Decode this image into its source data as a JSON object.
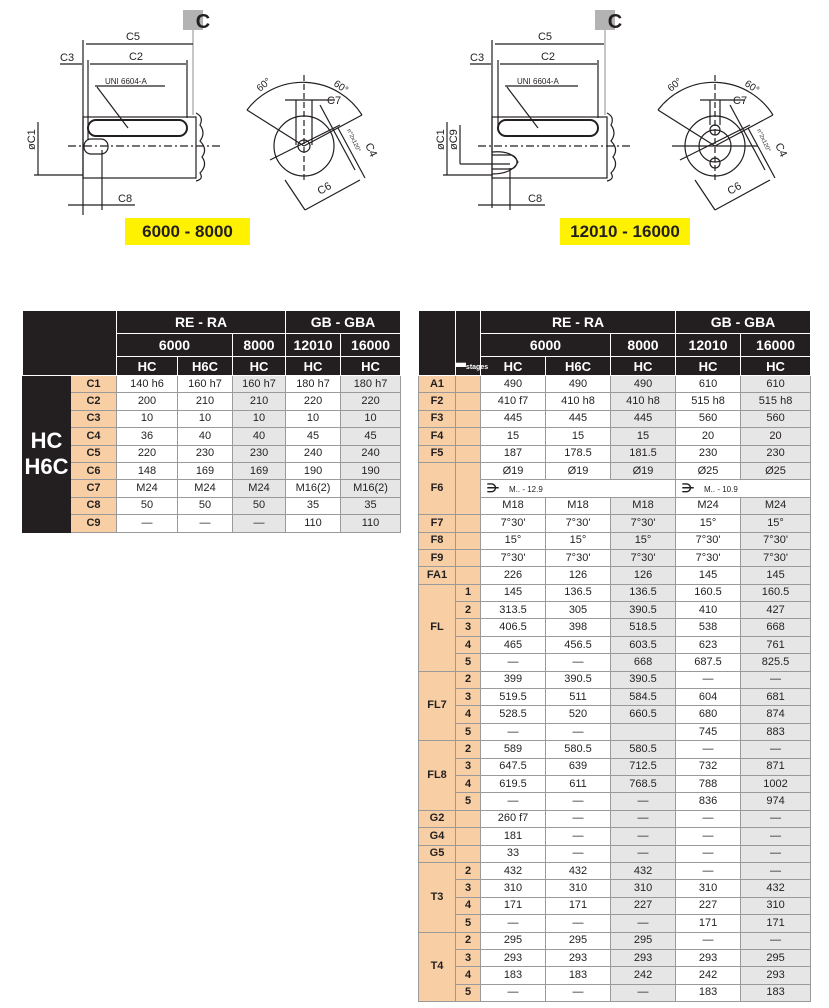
{
  "drawings": [
    {
      "section_marker": "C",
      "labels": {
        "c5": "C5",
        "c2": "C2",
        "c3": "C3",
        "c1": "øC1",
        "c9": "",
        "c8": "C8",
        "key": "UNI 6604-A",
        "a1": "60°",
        "a2": "60°",
        "c7": "C7",
        "c4": "C4",
        "c6": "C6",
        "holes": "n°2x120°"
      },
      "model_range": "6000 - 8000"
    },
    {
      "section_marker": "C",
      "labels": {
        "c5": "C5",
        "c2": "C2",
        "c3": "C3",
        "c1": "øC1",
        "c9": "øC9",
        "c8": "C8",
        "key": "UNI 6604-A",
        "a1": "60°",
        "a2": "60°",
        "c7": "C7",
        "c4": "C4",
        "c6": "C6",
        "holes": "n°2x120°"
      },
      "model_range": "12010 - 16000"
    }
  ],
  "colors": {
    "header": "#231f20",
    "code_cell": "#f8cfa4",
    "shaded_column": "#e6e6e6",
    "model_label": "#fff200"
  },
  "header": {
    "families": [
      {
        "label": "RE - RA"
      },
      {
        "label": "GB - GBA"
      }
    ],
    "sizes": [
      {
        "label": "6000"
      },
      {
        "label": "8000"
      },
      {
        "label": "12010"
      },
      {
        "label": "16000"
      }
    ],
    "variants": [
      "HC",
      "H6C",
      "HC",
      "HC",
      "HC"
    ],
    "stages_label": "stages"
  },
  "left_table": {
    "group_label": [
      "HC",
      "H6C"
    ],
    "rows": [
      {
        "code": "C1",
        "values": [
          "140 h6",
          "160 h7",
          "160 h7",
          "180 h7",
          "180 h7"
        ]
      },
      {
        "code": "C2",
        "values": [
          "200",
          "210",
          "210",
          "220",
          "220"
        ]
      },
      {
        "code": "C3",
        "values": [
          "10",
          "10",
          "10",
          "10",
          "10"
        ]
      },
      {
        "code": "C4",
        "values": [
          "36",
          "40",
          "40",
          "45",
          "45"
        ]
      },
      {
        "code": "C5",
        "values": [
          "220",
          "230",
          "230",
          "240",
          "240"
        ]
      },
      {
        "code": "C6",
        "values": [
          "148",
          "169",
          "169",
          "190",
          "190"
        ]
      },
      {
        "code": "C7",
        "values": [
          "M24",
          "M24",
          "M24",
          "M16(2)",
          "M16(2)"
        ]
      },
      {
        "code": "C8",
        "values": [
          "50",
          "50",
          "50",
          "35",
          "35"
        ]
      },
      {
        "code": "C9",
        "values": [
          "—",
          "—",
          "—",
          "110",
          "110"
        ]
      }
    ]
  },
  "right_table": {
    "groups": [
      {
        "code": "A1",
        "rows": [
          {
            "stage": "",
            "values": [
              "490",
              "490",
              "490",
              "610",
              "610"
            ]
          }
        ]
      },
      {
        "code": "F2",
        "rows": [
          {
            "stage": "",
            "values": [
              "410 f7",
              "410 h8",
              "410 h8",
              "515 h8",
              "515 h8"
            ]
          }
        ]
      },
      {
        "code": "F3",
        "rows": [
          {
            "stage": "",
            "values": [
              "445",
              "445",
              "445",
              "560",
              "560"
            ]
          }
        ]
      },
      {
        "code": "F4",
        "rows": [
          {
            "stage": "",
            "values": [
              "15",
              "15",
              "15",
              "20",
              "20"
            ]
          }
        ]
      },
      {
        "code": "F5",
        "rows": [
          {
            "stage": "",
            "values": [
              "187",
              "178.5",
              "181.5",
              "230",
              "230"
            ]
          }
        ]
      },
      {
        "code": "F6",
        "f6": true,
        "diameters": [
          "Ø19",
          "Ø19",
          "Ø19",
          "Ø25",
          "Ø25"
        ],
        "bolt_class": [
          "M.. - 12.9",
          "M.. - 10.9"
        ],
        "threads": [
          "M18",
          "M18",
          "M18",
          "M24",
          "M24"
        ]
      },
      {
        "code": "F7",
        "rows": [
          {
            "stage": "",
            "values": [
              "7°30'",
              "7°30'",
              "7°30'",
              "15°",
              "15°"
            ]
          }
        ]
      },
      {
        "code": "F8",
        "rows": [
          {
            "stage": "",
            "values": [
              "15°",
              "15°",
              "15°",
              "7°30'",
              "7°30'"
            ]
          }
        ]
      },
      {
        "code": "F9",
        "rows": [
          {
            "stage": "",
            "values": [
              "7°30'",
              "7°30'",
              "7°30'",
              "7°30'",
              "7°30'"
            ]
          }
        ]
      },
      {
        "code": "FA1",
        "rows": [
          {
            "stage": "",
            "values": [
              "226",
              "126",
              "126",
              "145",
              "145"
            ]
          }
        ]
      },
      {
        "code": "FL",
        "rows": [
          {
            "stage": "1",
            "values": [
              "145",
              "136.5",
              "136.5",
              "160.5",
              "160.5"
            ]
          },
          {
            "stage": "2",
            "values": [
              "313.5",
              "305",
              "390.5",
              "410",
              "427"
            ]
          },
          {
            "stage": "3",
            "values": [
              "406.5",
              "398",
              "518.5",
              "538",
              "668"
            ]
          },
          {
            "stage": "4",
            "values": [
              "465",
              "456.5",
              "603.5",
              "623",
              "761"
            ]
          },
          {
            "stage": "5",
            "values": [
              "—",
              "—",
              "668",
              "687.5",
              "825.5"
            ]
          }
        ]
      },
      {
        "code": "FL7",
        "rows": [
          {
            "stage": "2",
            "values": [
              "399",
              "390.5",
              "390.5",
              "—",
              "—"
            ]
          },
          {
            "stage": "3",
            "values": [
              "519.5",
              "511",
              "584.5",
              "604",
              "681"
            ]
          },
          {
            "stage": "4",
            "values": [
              "528.5",
              "520",
              "660.5",
              "680",
              "874"
            ]
          },
          {
            "stage": "5",
            "values": [
              "—",
              "—",
              "",
              "745",
              "883"
            ]
          }
        ]
      },
      {
        "code": "FL8",
        "rows": [
          {
            "stage": "2",
            "values": [
              "589",
              "580.5",
              "580.5",
              "—",
              "—"
            ]
          },
          {
            "stage": "3",
            "values": [
              "647.5",
              "639",
              "712.5",
              "732",
              "871"
            ]
          },
          {
            "stage": "4",
            "values": [
              "619.5",
              "611",
              "768.5",
              "788",
              "1002"
            ]
          },
          {
            "stage": "5",
            "values": [
              "—",
              "—",
              "—",
              "836",
              "974"
            ]
          }
        ]
      },
      {
        "code": "G2",
        "rows": [
          {
            "stage": "",
            "values": [
              "260 f7",
              "—",
              "—",
              "—",
              "—"
            ]
          }
        ]
      },
      {
        "code": "G4",
        "rows": [
          {
            "stage": "",
            "values": [
              "181",
              "—",
              "—",
              "—",
              "—"
            ]
          }
        ]
      },
      {
        "code": "G5",
        "rows": [
          {
            "stage": "",
            "values": [
              "33",
              "—",
              "—",
              "—",
              "—"
            ]
          }
        ]
      },
      {
        "code": "T3",
        "rows": [
          {
            "stage": "2",
            "values": [
              "432",
              "432",
              "432",
              "—",
              "—"
            ]
          },
          {
            "stage": "3",
            "values": [
              "310",
              "310",
              "310",
              "310",
              "432"
            ]
          },
          {
            "stage": "4",
            "values": [
              "171",
              "171",
              "227",
              "227",
              "310"
            ]
          },
          {
            "stage": "5",
            "values": [
              "—",
              "—",
              "—",
              "171",
              "171"
            ]
          }
        ]
      },
      {
        "code": "T4",
        "rows": [
          {
            "stage": "2",
            "values": [
              "295",
              "295",
              "295",
              "—",
              "—"
            ]
          },
          {
            "stage": "3",
            "values": [
              "293",
              "293",
              "293",
              "293",
              "295"
            ]
          },
          {
            "stage": "4",
            "values": [
              "183",
              "183",
              "242",
              "242",
              "293"
            ]
          },
          {
            "stage": "5",
            "values": [
              "—",
              "—",
              "—",
              "183",
              "183"
            ]
          }
        ]
      }
    ]
  }
}
